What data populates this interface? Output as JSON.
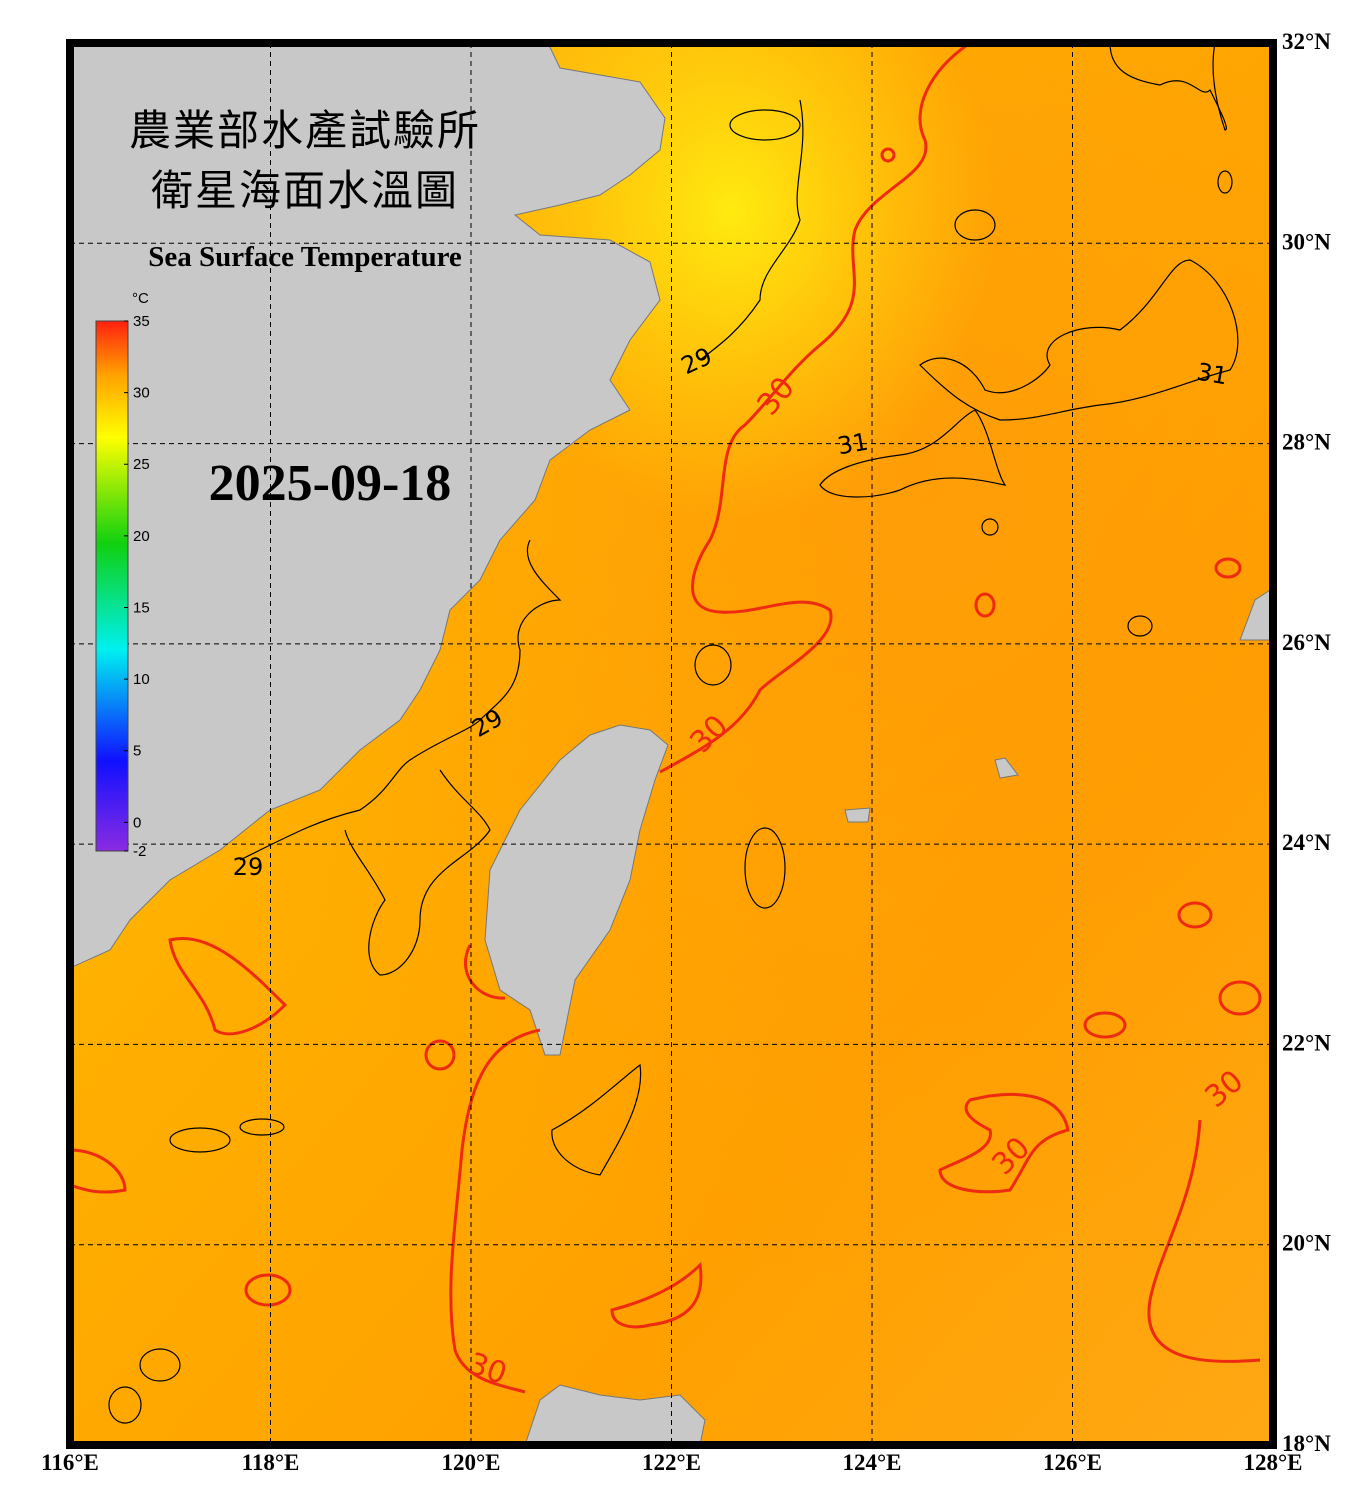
{
  "title": {
    "line1": "農業部水產試驗所",
    "line2": "衛星海面水溫圖",
    "english": "Sea Surface Temperature"
  },
  "date": "2025-09-18",
  "colorbar": {
    "unit": "°C",
    "range": [
      -2,
      35
    ],
    "ticks": [
      35,
      30,
      25,
      20,
      15,
      10,
      5,
      0,
      -2
    ]
  },
  "map": {
    "lon_range": [
      116,
      128
    ],
    "lat_range": [
      18,
      32
    ],
    "lon_ticks": [
      {
        "value": 116,
        "label": "116°E"
      },
      {
        "value": 118,
        "label": "118°E"
      },
      {
        "value": 120,
        "label": "120°E"
      },
      {
        "value": 122,
        "label": "122°E"
      },
      {
        "value": 124,
        "label": "124°E"
      },
      {
        "value": 126,
        "label": "126°E"
      },
      {
        "value": 128,
        "label": "128°E"
      }
    ],
    "lat_ticks": [
      {
        "value": 32,
        "label": "32°N"
      },
      {
        "value": 30,
        "label": "30°N"
      },
      {
        "value": 28,
        "label": "28°N"
      },
      {
        "value": 26,
        "label": "26°N"
      },
      {
        "value": 24,
        "label": "24°N"
      },
      {
        "value": 22,
        "label": "22°N"
      },
      {
        "value": 20,
        "label": "20°N"
      },
      {
        "value": 18,
        "label": "18°N"
      }
    ]
  },
  "contour_labels": [
    29,
    30,
    31,
    31,
    29,
    30,
    29,
    30,
    30,
    30
  ]
}
